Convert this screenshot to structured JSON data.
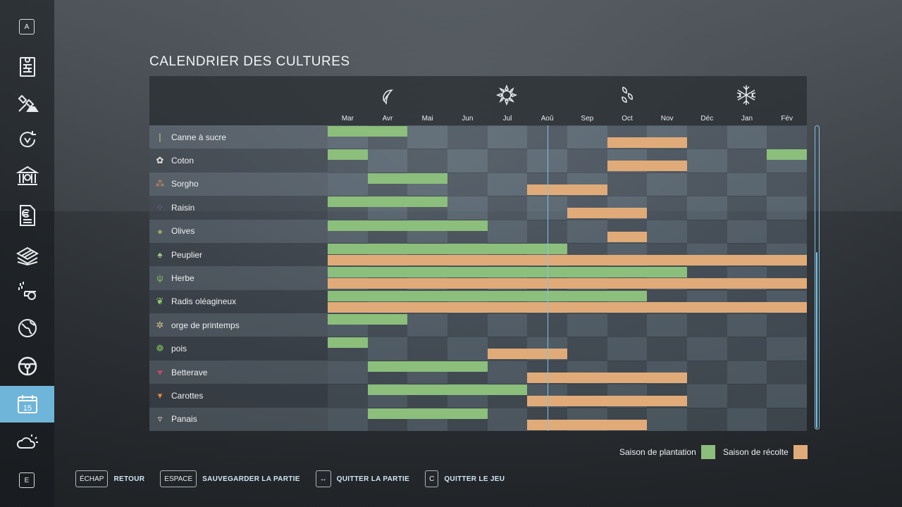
{
  "title": "CALENDRIER DES CULTURES",
  "sidebar": {
    "top_key": "A",
    "bottom_key": "E",
    "items": [
      {
        "icon": "calendar-brick-icon"
      },
      {
        "icon": "satellite-dig-icon"
      },
      {
        "icon": "cycle-icon"
      },
      {
        "icon": "bank-icon"
      },
      {
        "icon": "euro-document-icon"
      },
      {
        "icon": "field-icon"
      },
      {
        "icon": "sprayer-icon"
      },
      {
        "icon": "globe-icon"
      },
      {
        "icon": "steering-wheel-icon"
      },
      {
        "icon": "calendar-icon",
        "label": "15",
        "active": true
      },
      {
        "icon": "weather-icon"
      }
    ]
  },
  "months": [
    "Mar",
    "Avr",
    "Mai",
    "Jun",
    "Jul",
    "Aoû",
    "Sep",
    "Oct",
    "Nov",
    "Déc",
    "Jan",
    "Fév"
  ],
  "season_icons": [
    "spring-leaf-icon",
    "summer-sun-icon",
    "autumn-leaves-icon",
    "winter-snowflake-icon"
  ],
  "crops": [
    {
      "name": "Canne à sucre",
      "icon": "sugarcane-icon",
      "plant": [
        [
          0,
          2
        ],
        [
          12,
          12
        ]
      ],
      "harvest": [
        [
          7,
          9
        ]
      ]
    },
    {
      "name": "Coton",
      "icon": "cotton-icon",
      "plant": [
        [
          0,
          1
        ],
        [
          11,
          12
        ]
      ],
      "harvest": [
        [
          7,
          9
        ]
      ]
    },
    {
      "name": "Sorgho",
      "icon": "sorghum-icon",
      "plant": [
        [
          1,
          3
        ]
      ],
      "harvest": [
        [
          5,
          7
        ]
      ]
    },
    {
      "name": "Raisin",
      "icon": "grape-icon",
      "plant": [
        [
          0,
          3
        ]
      ],
      "harvest": [
        [
          6,
          8
        ]
      ]
    },
    {
      "name": "Olives",
      "icon": "olive-icon",
      "plant": [
        [
          0,
          4
        ]
      ],
      "harvest": [
        [
          7,
          8
        ]
      ]
    },
    {
      "name": "Peuplier",
      "icon": "poplar-icon",
      "plant": [
        [
          0,
          6
        ]
      ],
      "harvest": [
        [
          0,
          12
        ]
      ]
    },
    {
      "name": "Herbe",
      "icon": "grass-icon",
      "plant": [
        [
          0,
          9
        ]
      ],
      "harvest": [
        [
          0,
          12
        ]
      ]
    },
    {
      "name": "Radis oléagineux",
      "icon": "radish-icon",
      "plant": [
        [
          0,
          8
        ]
      ],
      "harvest": [
        [
          0,
          12
        ]
      ]
    },
    {
      "name": "orge de printemps",
      "icon": "barley-icon",
      "plant": [
        [
          0,
          2
        ]
      ],
      "harvest": []
    },
    {
      "name": "pois",
      "icon": "peas-icon",
      "plant": [
        [
          0,
          1
        ]
      ],
      "harvest": [
        [
          4,
          6
        ]
      ]
    },
    {
      "name": "Betterave",
      "icon": "beet-icon",
      "plant": [
        [
          1,
          4
        ]
      ],
      "harvest": [
        [
          5,
          9
        ]
      ]
    },
    {
      "name": "Carottes",
      "icon": "carrot-icon",
      "plant": [
        [
          1,
          5
        ]
      ],
      "harvest": [
        [
          5,
          9
        ]
      ]
    },
    {
      "name": "Panais",
      "icon": "parsnip-icon",
      "plant": [
        [
          1,
          4
        ]
      ],
      "harvest": [
        [
          5,
          8
        ]
      ]
    }
  ],
  "current_month_index": 5.5,
  "legend": {
    "planting": "Saison de plantation",
    "harvest": "Saison de récolte",
    "planting_color": "#8cbe7c",
    "harvest_color": "#e0ab78"
  },
  "footer": [
    {
      "key": "ÉCHAP",
      "label": "RETOUR"
    },
    {
      "key": "ESPACE",
      "label": "SAUVEGARDER LA PARTIE"
    },
    {
      "key": "↔",
      "label": "QUITTER LA PARTIE"
    },
    {
      "key": "C",
      "label": "QUITTER LE JEU"
    }
  ]
}
